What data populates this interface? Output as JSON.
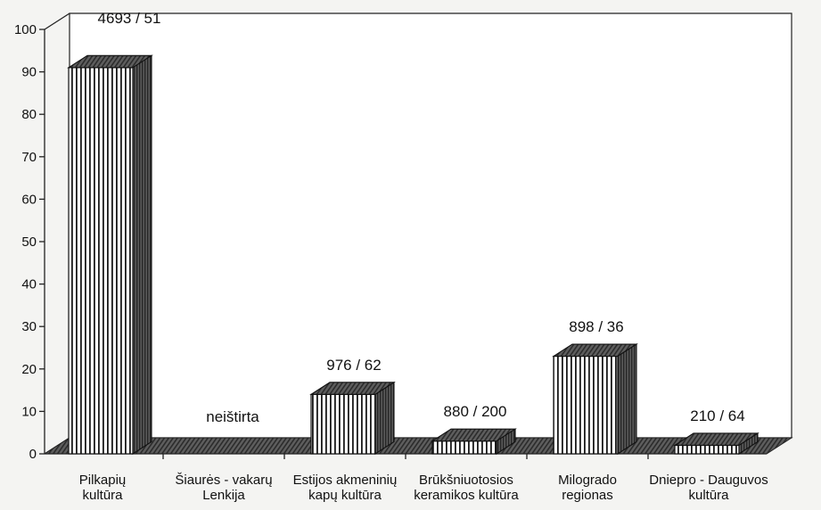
{
  "chart_data": {
    "type": "bar",
    "categories": [
      [
        "Pilkapių",
        "kultūra"
      ],
      [
        "Šiaurės - vakarų",
        "Lenkija"
      ],
      [
        "Estijos akmeninių",
        "kapų kultūra"
      ],
      [
        "Brūkšniuotosios",
        "keramikos kultūra"
      ],
      [
        "Milogrado",
        "regionas"
      ],
      [
        "Dniepro - Dauguvos",
        "kultūra"
      ]
    ],
    "values": [
      91,
      0,
      14,
      3,
      23,
      2
    ],
    "data_labels": [
      "4693 / 51",
      "neištirta",
      "976 / 62",
      "880 / 200",
      "898 / 36",
      "210 / 64"
    ],
    "yticks": [
      "0",
      "10",
      "20",
      "30",
      "40",
      "50",
      "60",
      "70",
      "80",
      "90",
      "100"
    ],
    "ylim": [
      0,
      100
    ],
    "grid": false,
    "style": "3d-bar",
    "colors": {
      "bar_face": "#ffffff",
      "bar_stripe": "#1a1a1a",
      "bar_top": "#6e6e6e",
      "bar_side": "#4a4a4a",
      "floor": "#5a5a5a",
      "wall_border": "#222222",
      "background": "#f4f4f2"
    }
  }
}
